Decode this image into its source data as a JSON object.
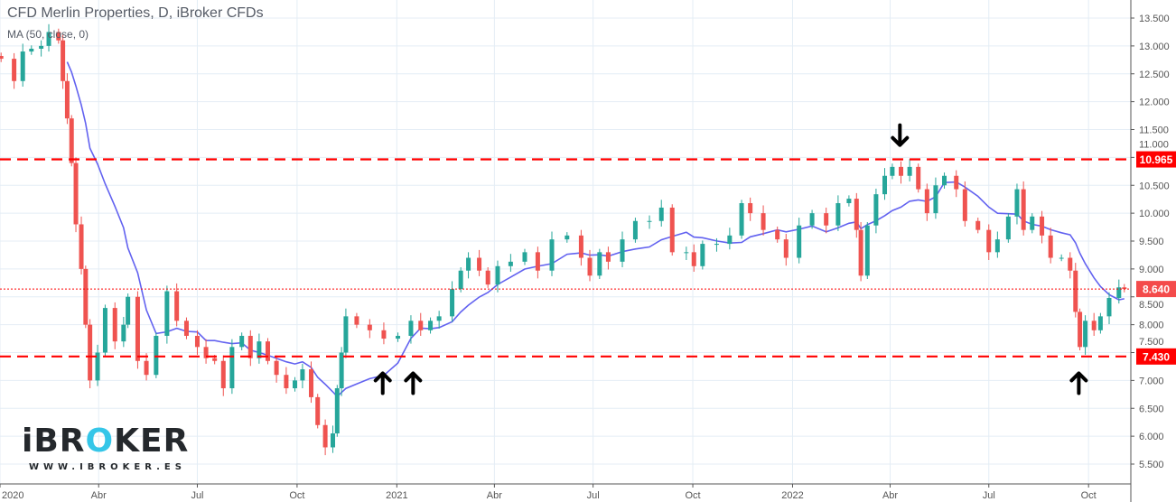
{
  "header": {
    "title": "CFD Merlin Properties, D, iBroker CFDs",
    "indicator": "MA (50, close, 0)"
  },
  "logo": {
    "brand": "iBROKER",
    "url": "WWW.IBROKER.ES"
  },
  "colors": {
    "up": "#26a69a",
    "down": "#ef5350",
    "ma": "#6262f0",
    "level": "#ff0000",
    "grid": "#e4edf5"
  },
  "chart_data": {
    "type": "candlestick",
    "yticks": [
      "5.500",
      "6.000",
      "6.500",
      "7.000",
      "7.500",
      "8.000",
      "8.500",
      "9.000",
      "9.500",
      "10.000",
      "10.500",
      "11.000",
      "11.500",
      "12.000",
      "12.500",
      "13.000",
      "13.500"
    ],
    "ylim": [
      5.5,
      13.5
    ],
    "xticks": [
      {
        "label": "2020",
        "date": "2020-01-01"
      },
      {
        "label": "Abr",
        "date": "2020-04-01"
      },
      {
        "label": "Jul",
        "date": "2020-07-01"
      },
      {
        "label": "Oct",
        "date": "2020-10-01"
      },
      {
        "label": "2021",
        "date": "2021-01-01"
      },
      {
        "label": "Abr",
        "date": "2021-04-01"
      },
      {
        "label": "Jul",
        "date": "2021-07-01"
      },
      {
        "label": "Oct",
        "date": "2021-10-01"
      },
      {
        "label": "2022",
        "date": "2022-01-01"
      },
      {
        "label": "Abr",
        "date": "2022-04-01"
      },
      {
        "label": "Jul",
        "date": "2022-07-01"
      },
      {
        "label": "Oct",
        "date": "2022-10-01"
      }
    ],
    "xlim": [
      "2020-01-01",
      "2022-11-09"
    ],
    "levels": [
      {
        "value": 10.965,
        "label": "10.965",
        "style": "dashed"
      },
      {
        "value": 7.43,
        "label": "7.430",
        "style": "dashed"
      }
    ],
    "last_price": {
      "value": 8.64,
      "label": "8.640"
    },
    "indicator": {
      "type": "SMA",
      "period": 50,
      "source": "close"
    },
    "annotations": [
      {
        "type": "arrow-down",
        "date": "2022-04-10",
        "price": 11.4
      },
      {
        "type": "arrow-up",
        "date": "2020-12-19",
        "price": 6.95
      },
      {
        "type": "arrow-up",
        "date": "2021-01-16",
        "price": 6.95
      },
      {
        "type": "arrow-up",
        "date": "2022-09-22",
        "price": 6.95
      }
    ],
    "closes": [
      [
        "2020-01-02",
        12.77
      ],
      [
        "2020-01-14",
        12.37
      ],
      [
        "2020-01-22",
        12.9
      ],
      [
        "2020-01-30",
        12.95
      ],
      [
        "2020-02-08",
        13.0
      ],
      [
        "2020-02-15",
        13.25
      ],
      [
        "2020-02-24",
        13.1
      ],
      [
        "2020-02-28",
        12.37
      ],
      [
        "2020-03-03",
        11.7
      ],
      [
        "2020-03-07",
        10.9
      ],
      [
        "2020-03-11",
        9.8
      ],
      [
        "2020-03-16",
        9.0
      ],
      [
        "2020-03-20",
        8.0
      ],
      [
        "2020-03-24",
        7.0
      ],
      [
        "2020-03-31",
        7.5
      ],
      [
        "2020-04-07",
        8.3
      ],
      [
        "2020-04-16",
        7.7
      ],
      [
        "2020-04-24",
        8.0
      ],
      [
        "2020-04-28",
        8.5
      ],
      [
        "2020-05-07",
        7.35
      ],
      [
        "2020-05-15",
        7.1
      ],
      [
        "2020-05-24",
        7.8
      ],
      [
        "2020-06-03",
        8.6
      ],
      [
        "2020-06-12",
        8.07
      ],
      [
        "2020-06-21",
        7.8
      ],
      [
        "2020-07-01",
        7.6
      ],
      [
        "2020-07-09",
        7.4
      ],
      [
        "2020-07-17",
        7.35
      ],
      [
        "2020-07-25",
        6.86
      ],
      [
        "2020-08-02",
        7.6
      ],
      [
        "2020-08-11",
        7.8
      ],
      [
        "2020-08-19",
        7.4
      ],
      [
        "2020-08-27",
        7.7
      ],
      [
        "2020-09-04",
        7.35
      ],
      [
        "2020-09-12",
        7.1
      ],
      [
        "2020-09-21",
        6.86
      ],
      [
        "2020-09-29",
        7.0
      ],
      [
        "2020-10-06",
        7.2
      ],
      [
        "2020-10-14",
        6.7
      ],
      [
        "2020-10-20",
        6.2
      ],
      [
        "2020-10-27",
        5.8
      ],
      [
        "2020-11-03",
        6.05
      ],
      [
        "2020-11-07",
        6.86
      ],
      [
        "2020-11-11",
        7.5
      ],
      [
        "2020-11-15",
        8.15
      ],
      [
        "2020-11-25",
        8.0
      ],
      [
        "2020-12-07",
        7.9
      ],
      [
        "2020-12-20",
        7.75
      ],
      [
        "2021-01-02",
        7.8
      ],
      [
        "2021-01-14",
        8.07
      ],
      [
        "2021-01-23",
        7.9
      ],
      [
        "2021-02-01",
        8.07
      ],
      [
        "2021-02-09",
        8.15
      ],
      [
        "2021-02-21",
        8.64
      ],
      [
        "2021-03-01",
        8.97
      ],
      [
        "2021-03-08",
        9.2
      ],
      [
        "2021-03-18",
        8.97
      ],
      [
        "2021-03-26",
        8.72
      ],
      [
        "2021-04-04",
        9.05
      ],
      [
        "2021-04-16",
        9.13
      ],
      [
        "2021-04-29",
        9.3
      ],
      [
        "2021-05-11",
        8.97
      ],
      [
        "2021-05-24",
        9.53
      ],
      [
        "2021-06-07",
        9.6
      ],
      [
        "2021-06-20",
        9.2
      ],
      [
        "2021-06-28",
        8.88
      ],
      [
        "2021-07-07",
        9.3
      ],
      [
        "2021-07-15",
        9.13
      ],
      [
        "2021-07-28",
        9.53
      ],
      [
        "2021-08-09",
        9.86
      ],
      [
        "2021-08-22",
        9.86
      ],
      [
        "2021-09-02",
        10.1
      ],
      [
        "2021-09-12",
        9.3
      ],
      [
        "2021-09-25",
        9.3
      ],
      [
        "2021-10-02",
        9.05
      ],
      [
        "2021-10-10",
        9.45
      ],
      [
        "2021-10-23",
        9.45
      ],
      [
        "2021-11-04",
        9.6
      ],
      [
        "2021-11-15",
        10.18
      ],
      [
        "2021-11-23",
        10.0
      ],
      [
        "2021-12-05",
        9.7
      ],
      [
        "2021-12-18",
        9.53
      ],
      [
        "2021-12-26",
        9.2
      ],
      [
        "2022-01-07",
        9.78
      ],
      [
        "2022-01-19",
        10.0
      ],
      [
        "2022-02-01",
        9.78
      ],
      [
        "2022-02-12",
        10.18
      ],
      [
        "2022-02-22",
        10.26
      ],
      [
        "2022-03-01",
        9.7
      ],
      [
        "2022-03-05",
        8.88
      ],
      [
        "2022-03-11",
        9.78
      ],
      [
        "2022-03-19",
        10.34
      ],
      [
        "2022-03-27",
        10.67
      ],
      [
        "2022-04-03",
        10.83
      ],
      [
        "2022-04-11",
        10.67
      ],
      [
        "2022-04-19",
        10.83
      ],
      [
        "2022-04-27",
        10.43
      ],
      [
        "2022-05-05",
        10.0
      ],
      [
        "2022-05-13",
        10.5
      ],
      [
        "2022-05-21",
        10.67
      ],
      [
        "2022-06-01",
        10.43
      ],
      [
        "2022-06-09",
        9.86
      ],
      [
        "2022-06-21",
        9.7
      ],
      [
        "2022-07-01",
        9.3
      ],
      [
        "2022-07-09",
        9.53
      ],
      [
        "2022-07-19",
        9.94
      ],
      [
        "2022-07-27",
        10.43
      ],
      [
        "2022-08-02",
        9.7
      ],
      [
        "2022-08-10",
        9.94
      ],
      [
        "2022-08-19",
        9.6
      ],
      [
        "2022-08-27",
        9.2
      ],
      [
        "2022-09-06",
        9.2
      ],
      [
        "2022-09-14",
        8.97
      ],
      [
        "2022-09-19",
        8.23
      ],
      [
        "2022-09-23",
        7.6
      ],
      [
        "2022-09-28",
        8.07
      ],
      [
        "2022-10-06",
        7.9
      ],
      [
        "2022-10-12",
        8.15
      ],
      [
        "2022-10-20",
        8.48
      ],
      [
        "2022-10-29",
        8.67
      ],
      [
        "2022-11-03",
        8.64
      ]
    ]
  }
}
